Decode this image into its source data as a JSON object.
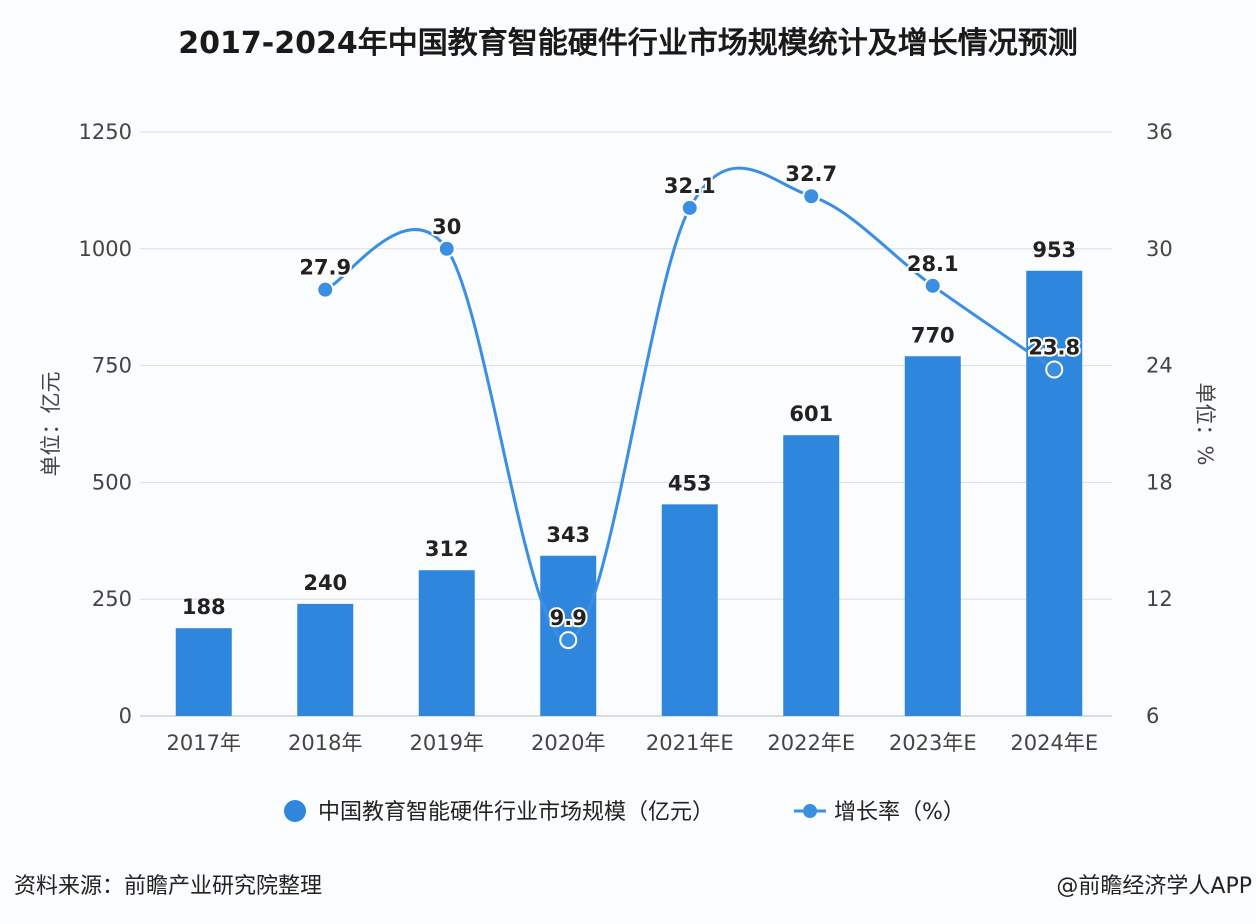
{
  "title": "2017-2024年中国教育智能硬件行业市场规模统计及增长情况预测",
  "source": "资料来源：前瞻产业研究院整理",
  "credit": "@前瞻经济学人APP",
  "colors": {
    "bar": "#2f86dd",
    "line": "#3a8fe2",
    "grid": "#d9dde3"
  },
  "chart_data": {
    "type": "bar+line",
    "title": "2017-2024年中国教育智能硬件行业市场规模统计及增长情况预测",
    "categories": [
      "2017年",
      "2018年",
      "2019年",
      "2020年",
      "2021年E",
      "2022年E",
      "2023年E",
      "2024年E"
    ],
    "series": [
      {
        "name": "中国教育智能硬件行业市场规模（亿元）",
        "type": "bar",
        "axis": "left",
        "values": [
          188,
          240,
          312,
          343,
          453,
          601,
          770,
          953
        ]
      },
      {
        "name": "增长率（%）",
        "type": "line",
        "axis": "right",
        "values": [
          null,
          27.9,
          30,
          9.9,
          32.1,
          32.7,
          28.1,
          23.8
        ]
      }
    ],
    "ylabel": "单位：亿元",
    "y2label": "单位：%",
    "ylim": [
      0,
      1250
    ],
    "yticks": [
      0,
      250,
      500,
      750,
      1000,
      1250
    ],
    "y2lim": [
      6,
      36
    ],
    "y2ticks": [
      6,
      12,
      18,
      24,
      30,
      36
    ],
    "grid": true,
    "legend": "bottom"
  }
}
